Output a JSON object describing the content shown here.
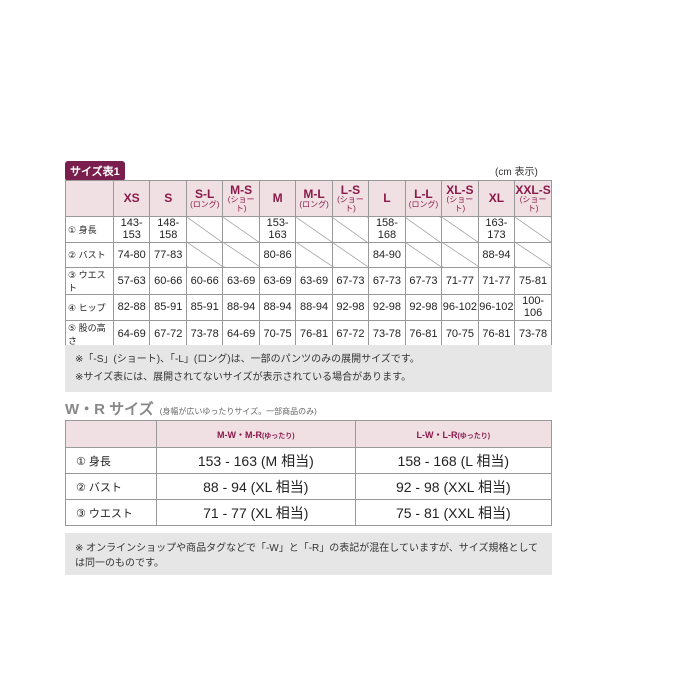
{
  "size_table_1": {
    "title": "サイズ表1",
    "unit_note": "(cm 表示)",
    "columns": [
      {
        "size": "XS",
        "sub": ""
      },
      {
        "size": "S",
        "sub": ""
      },
      {
        "size": "S-L",
        "sub": "(ロング)"
      },
      {
        "size": "M-S",
        "sub": "(ショート)"
      },
      {
        "size": "M",
        "sub": ""
      },
      {
        "size": "M-L",
        "sub": "(ロング)"
      },
      {
        "size": "L-S",
        "sub": "(ショート)"
      },
      {
        "size": "L",
        "sub": ""
      },
      {
        "size": "L-L",
        "sub": "(ロング)"
      },
      {
        "size": "XL-S",
        "sub": "(ショート)"
      },
      {
        "size": "XL",
        "sub": ""
      },
      {
        "size": "XXL-S",
        "sub": "(ショート)"
      }
    ],
    "rows": [
      {
        "label": "① 身長",
        "values": [
          "143-153",
          "148-158",
          null,
          null,
          "153-163",
          null,
          null,
          "158-168",
          null,
          null,
          "163-173",
          null
        ]
      },
      {
        "label": "② バスト",
        "values": [
          "74-80",
          "77-83",
          null,
          null,
          "80-86",
          null,
          null,
          "84-90",
          null,
          null,
          "88-94",
          null
        ]
      },
      {
        "label": "③ ウエスト",
        "values": [
          "57-63",
          "60-66",
          "60-66",
          "63-69",
          "63-69",
          "63-69",
          "67-73",
          "67-73",
          "67-73",
          "71-77",
          "71-77",
          "75-81"
        ]
      },
      {
        "label": "④ ヒップ",
        "values": [
          "82-88",
          "85-91",
          "85-91",
          "88-94",
          "88-94",
          "88-94",
          "92-98",
          "92-98",
          "92-98",
          "96-102",
          "96-102",
          "100-106"
        ]
      },
      {
        "label": "⑤ 股の高さ",
        "values": [
          "64-69",
          "67-72",
          "73-78",
          "64-69",
          "70-75",
          "76-81",
          "67-72",
          "73-78",
          "76-81",
          "70-75",
          "76-81",
          "73-78"
        ]
      }
    ],
    "notes": [
      "※「-S」(ショート)、「-L」(ロング)は、一部のパンツのみの展開サイズです。",
      "※サイズ表には、展開されてないサイズが表示されている場合があります。"
    ]
  },
  "wr_table": {
    "title": "W・R サイズ",
    "subtitle": "(身幅が広いゆったりサイズ。一部商品のみ)",
    "columns": [
      {
        "size": "M-W・M-R",
        "sub": "(ゆったり)"
      },
      {
        "size": "L-W・L-R",
        "sub": "(ゆったり)"
      }
    ],
    "rows": [
      {
        "label": "① 身長",
        "values": [
          "153 - 163 (M 相当)",
          "158 - 168 (L 相当)"
        ]
      },
      {
        "label": "② バスト",
        "values": [
          "88 - 94 (XL 相当)",
          "92 - 98 (XXL 相当)"
        ]
      },
      {
        "label": "③ ウエスト",
        "values": [
          "71 - 77 (XL 相当)",
          "75 - 81 (XXL 相当)"
        ]
      }
    ],
    "note": "※ オンラインショップや商品タグなどで「-W」と「-R」の表記が混在していますが、サイズ規格としては同一のものです。"
  },
  "colors": {
    "accent": "#7a1f4d",
    "header_bg": "#f0dfe3",
    "note_bg": "#e6e6e6"
  }
}
